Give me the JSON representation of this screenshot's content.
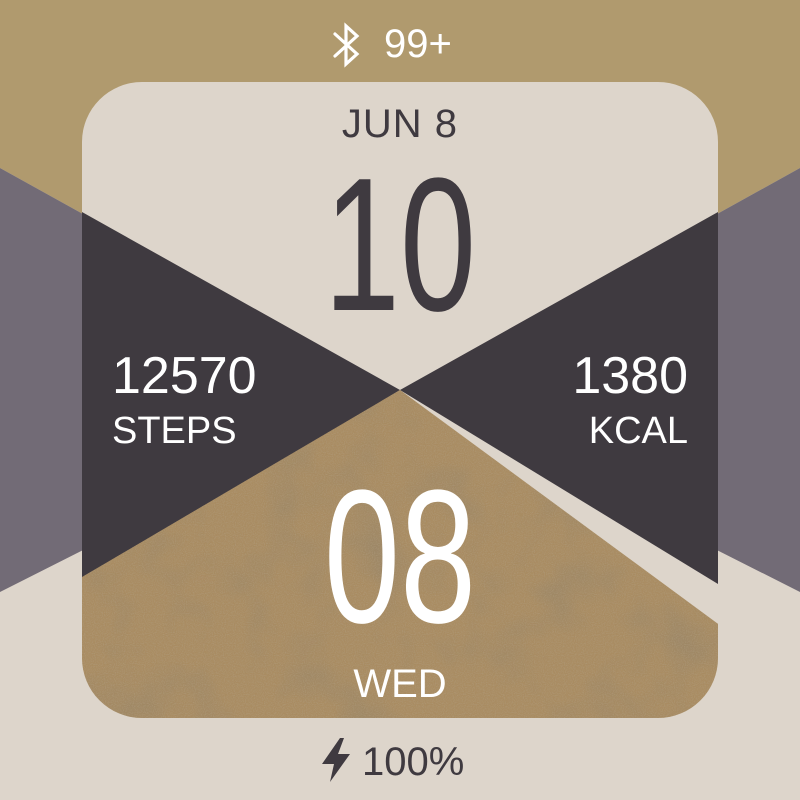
{
  "status": {
    "bluetooth_icon": "bluetooth-icon",
    "notification_count": "99+"
  },
  "date": {
    "label": "JUN 8",
    "weekday": "WED"
  },
  "time": {
    "hour": "10",
    "minute": "08"
  },
  "steps": {
    "value": "12570",
    "label": "STEPS"
  },
  "calories": {
    "value": "1380",
    "label": "KCAL"
  },
  "battery": {
    "icon": "lightning-bolt-icon",
    "level": "100%"
  },
  "colors": {
    "gold": "#b09a6e",
    "cream": "#ddd5cb",
    "dark": "#3f3a40",
    "slate": "#726b76",
    "sand": "#a98c62"
  }
}
